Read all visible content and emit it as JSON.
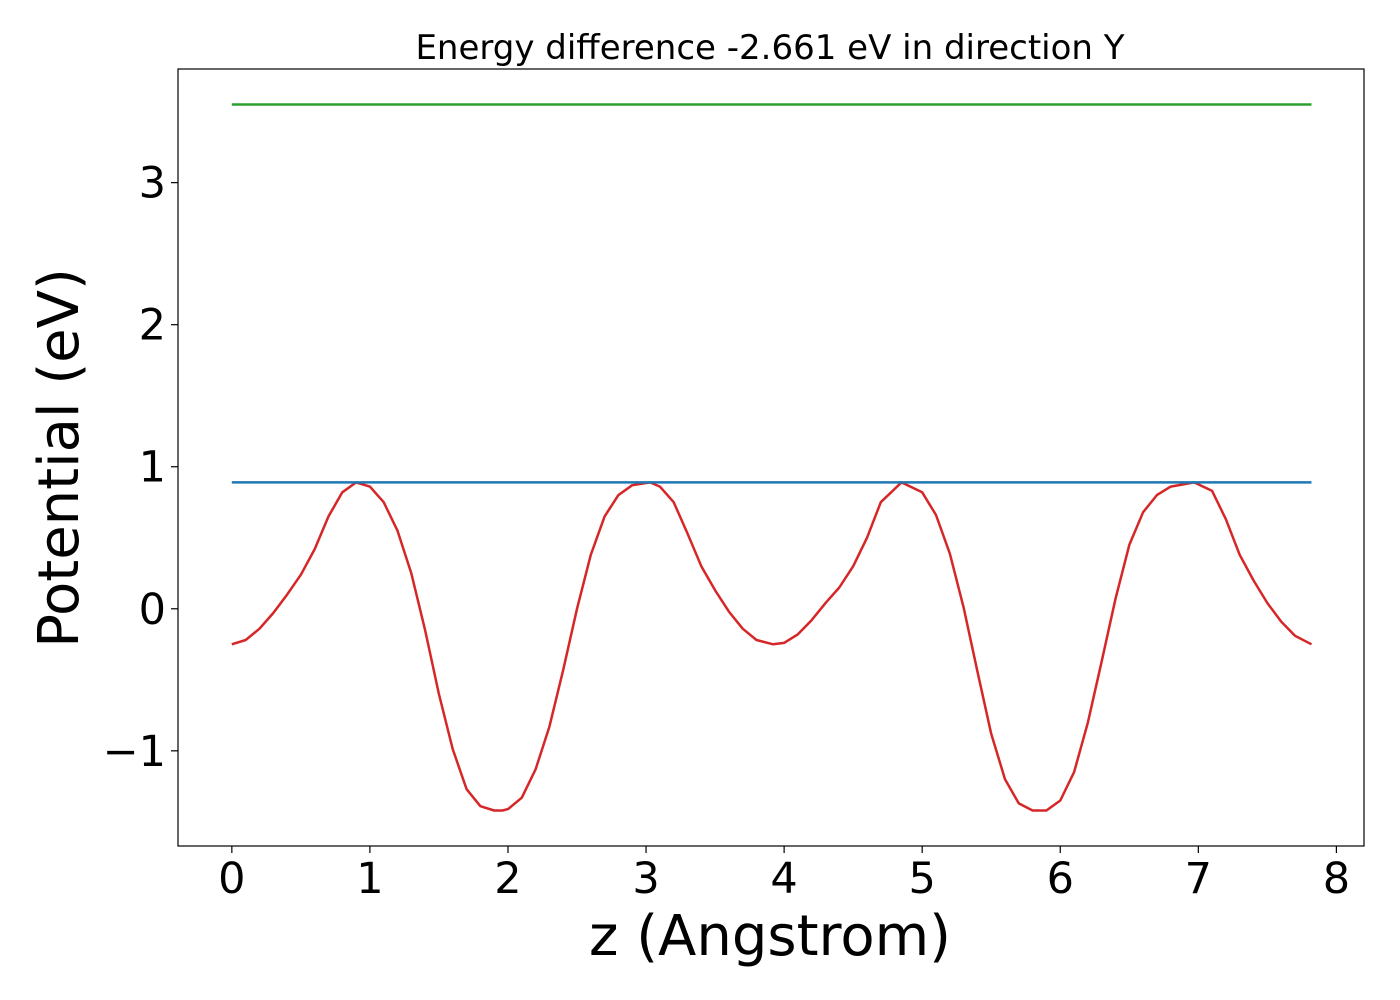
{
  "chart_data": {
    "type": "line",
    "title": "Energy difference -2.661 eV in direction Y",
    "xlabel": "z (Angstrom)",
    "ylabel": "Potential (eV)",
    "xlim": [
      -0.39,
      8.2
    ],
    "ylim": [
      -1.67,
      3.8
    ],
    "xticks": [
      0,
      1,
      2,
      3,
      4,
      5,
      6,
      7,
      8
    ],
    "xtick_labels": [
      "0",
      "1",
      "2",
      "3",
      "4",
      "5",
      "6",
      "7",
      "8"
    ],
    "yticks": [
      -1,
      0,
      1,
      2,
      3
    ],
    "ytick_labels": [
      "−1",
      "0",
      "1",
      "2",
      "3"
    ],
    "grid": false,
    "series": [
      {
        "color": "#d62728",
        "x": [
          0,
          0.1,
          0.2,
          0.3,
          0.4,
          0.5,
          0.6,
          0.7,
          0.8,
          0.9,
          1.0,
          1.1,
          1.2,
          1.3,
          1.4,
          1.5,
          1.6,
          1.7,
          1.8,
          1.9,
          1.96,
          2.0,
          2.1,
          2.2,
          2.3,
          2.4,
          2.5,
          2.6,
          2.7,
          2.8,
          2.9,
          3.03,
          3.1,
          3.2,
          3.3,
          3.4,
          3.5,
          3.6,
          3.7,
          3.8,
          3.92,
          4.0,
          4.1,
          4.2,
          4.3,
          4.4,
          4.5,
          4.6,
          4.7,
          4.85,
          5.0,
          5.1,
          5.2,
          5.3,
          5.4,
          5.5,
          5.6,
          5.7,
          5.8,
          5.9,
          6.0,
          6.1,
          6.2,
          6.3,
          6.4,
          6.5,
          6.6,
          6.7,
          6.8,
          6.97,
          7.1,
          7.2,
          7.3,
          7.4,
          7.5,
          7.6,
          7.7,
          7.82
        ],
        "y": [
          -0.25,
          -0.22,
          -0.14,
          -0.03,
          0.1,
          0.24,
          0.42,
          0.65,
          0.82,
          0.89,
          0.86,
          0.75,
          0.55,
          0.25,
          -0.15,
          -0.6,
          -0.99,
          -1.27,
          -1.39,
          -1.42,
          -1.42,
          -1.41,
          -1.33,
          -1.13,
          -0.83,
          -0.43,
          0.0,
          0.38,
          0.65,
          0.8,
          0.87,
          0.89,
          0.86,
          0.75,
          0.53,
          0.3,
          0.13,
          -0.02,
          -0.14,
          -0.22,
          -0.25,
          -0.24,
          -0.18,
          -0.08,
          0.04,
          0.15,
          0.3,
          0.5,
          0.75,
          0.89,
          0.82,
          0.66,
          0.39,
          0.01,
          -0.44,
          -0.88,
          -1.2,
          -1.37,
          -1.42,
          -1.42,
          -1.35,
          -1.15,
          -0.8,
          -0.37,
          0.07,
          0.45,
          0.68,
          0.8,
          0.86,
          0.89,
          0.83,
          0.63,
          0.38,
          0.2,
          0.04,
          -0.09,
          -0.19,
          -0.25
        ]
      },
      {
        "color": "#1f77b4",
        "x": [
          0,
          7.82
        ],
        "y": [
          0.89,
          0.89
        ]
      },
      {
        "color": "#2ca02c",
        "x": [
          0,
          7.82
        ],
        "y": [
          3.55,
          3.55
        ]
      }
    ]
  }
}
